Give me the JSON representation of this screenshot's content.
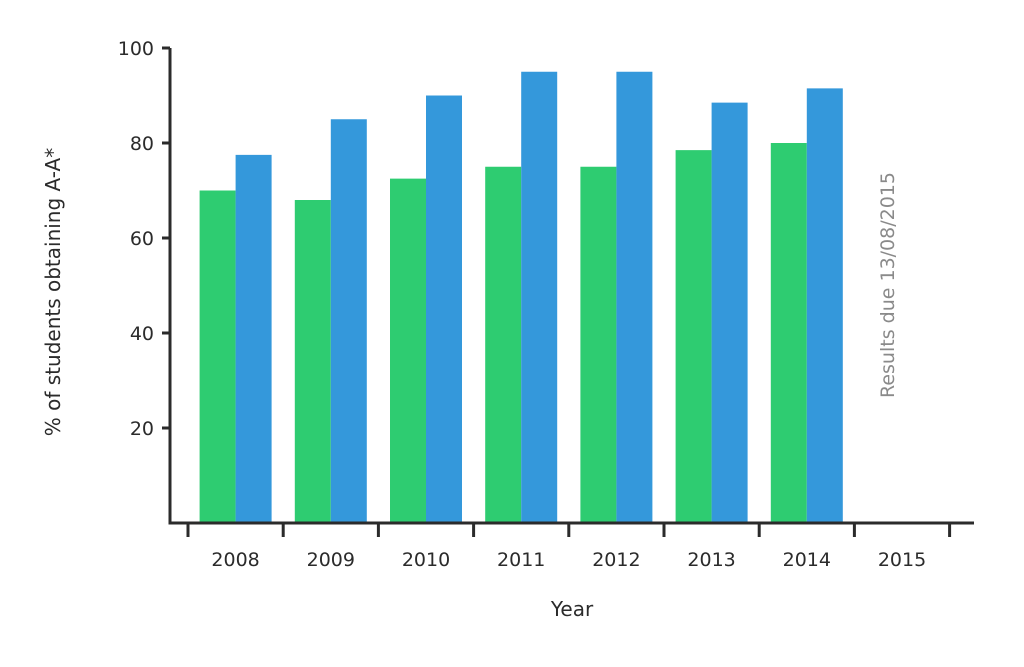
{
  "chart_data": {
    "type": "bar",
    "categories": [
      "2008",
      "2009",
      "2010",
      "2011",
      "2012",
      "2013",
      "2014",
      "2015"
    ],
    "series": [
      {
        "color": "#2ecc71",
        "values": [
          70,
          68,
          72.5,
          75,
          75,
          78.5,
          80,
          null
        ]
      },
      {
        "color": "#3498db",
        "values": [
          77.5,
          85,
          90,
          95,
          95,
          88.5,
          91.5,
          null
        ]
      }
    ],
    "title": "",
    "xlabel": "Year",
    "ylabel": "% of students obtaining A-A*",
    "ylim": [
      0,
      100
    ],
    "yticks": [
      20,
      40,
      60,
      80,
      100
    ],
    "grid": false,
    "legend": "none",
    "annotation": {
      "text": "Results due 13/08/2015",
      "category": "2015"
    },
    "axis_color": "#2b2b2b"
  }
}
